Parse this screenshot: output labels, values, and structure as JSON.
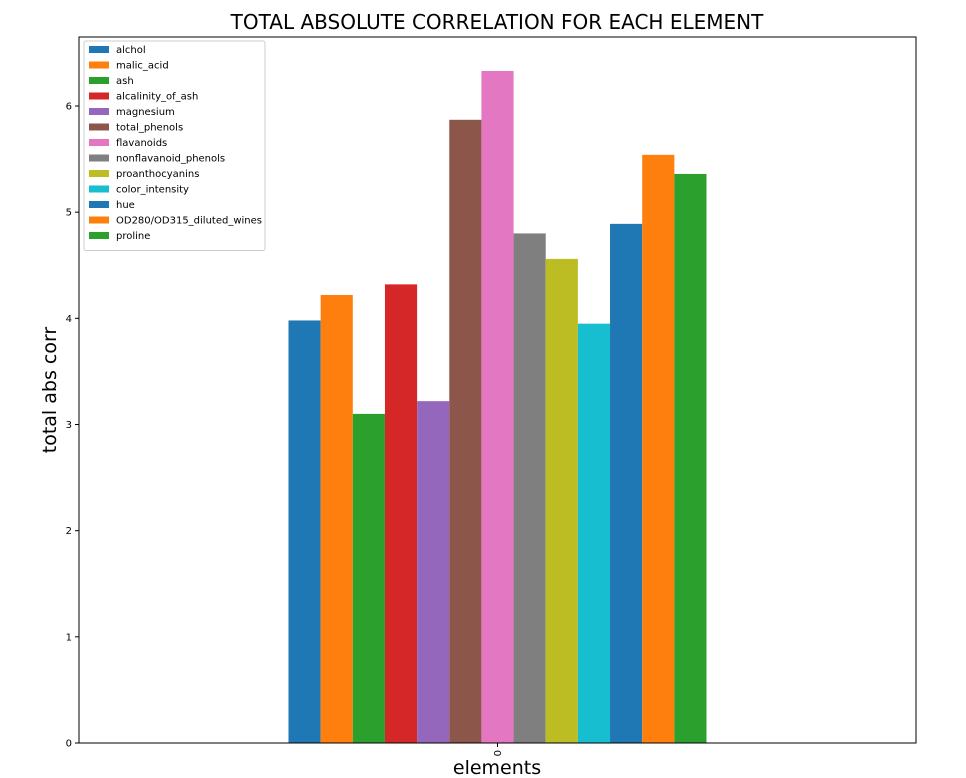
{
  "chart_data": {
    "type": "bar",
    "title": "TOTAL ABSOLUTE CORRELATION FOR EACH ELEMENT",
    "xlabel": "elements",
    "ylabel": "total abs corr",
    "categories": [
      "0"
    ],
    "ylim": [
      0,
      6.65
    ],
    "yticks": [
      "0",
      "1",
      "2",
      "3",
      "4",
      "5",
      "6"
    ],
    "grid": false,
    "legend_position": "top-left",
    "series": [
      {
        "name": "alchol",
        "values": [
          3.98
        ],
        "color": "#1f77b4"
      },
      {
        "name": "malic_acid",
        "values": [
          4.22
        ],
        "color": "#ff7f0e"
      },
      {
        "name": "ash",
        "values": [
          3.1
        ],
        "color": "#2ca02c"
      },
      {
        "name": "alcalinity_of_ash",
        "values": [
          4.32
        ],
        "color": "#d62728"
      },
      {
        "name": "magnesium",
        "values": [
          3.22
        ],
        "color": "#9467bd"
      },
      {
        "name": "total_phenols",
        "values": [
          5.87
        ],
        "color": "#8c564b"
      },
      {
        "name": "flavanoids",
        "values": [
          6.33
        ],
        "color": "#e377c2"
      },
      {
        "name": "nonflavanoid_phenols",
        "values": [
          4.8
        ],
        "color": "#7f7f7f"
      },
      {
        "name": "proanthocyanins",
        "values": [
          4.56
        ],
        "color": "#bcbd22"
      },
      {
        "name": "color_intensity",
        "values": [
          3.95
        ],
        "color": "#17becf"
      },
      {
        "name": "hue",
        "values": [
          4.89
        ],
        "color": "#1f77b4"
      },
      {
        "name": "OD280/OD315_diluted_wines",
        "values": [
          5.54
        ],
        "color": "#ff7f0e"
      },
      {
        "name": "proline",
        "values": [
          5.36
        ],
        "color": "#2ca02c"
      }
    ]
  }
}
